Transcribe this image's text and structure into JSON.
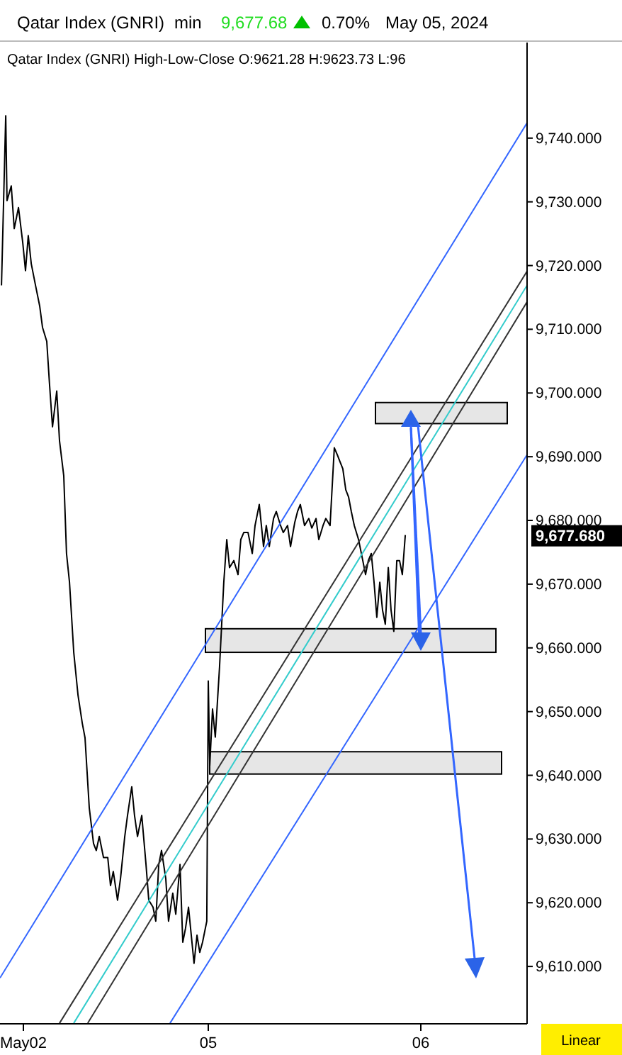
{
  "chart_data": {
    "type": "line",
    "title": "Qatar Index  (GNRI)",
    "subtitle": "Qatar Index (GNRI)  High-Low-Close    O:9621.28  H:9623.73  L:96",
    "annotations": [
      "min",
      "9,677.68",
      "0.70%",
      "May 05, 2024",
      "Linear",
      "9,677.680"
    ],
    "xlim": [
      4.02,
      6.5
    ],
    "xticks": [
      {
        "value": 4.13,
        "label": "May02"
      },
      {
        "value": 5,
        "label": "05"
      },
      {
        "value": 6,
        "label": "06"
      }
    ],
    "ylim": [
      9601,
      9755
    ],
    "yticks": [
      {
        "value": 9610,
        "label": "9,610.000"
      },
      {
        "value": 9620,
        "label": "9,620.000"
      },
      {
        "value": 9630,
        "label": "9,630.000"
      },
      {
        "value": 9640,
        "label": "9,640.000"
      },
      {
        "value": 9650,
        "label": "9,650.000"
      },
      {
        "value": 9660,
        "label": "9,660.000"
      },
      {
        "value": 9670,
        "label": "9,670.000"
      },
      {
        "value": 9680,
        "label": "9,680.000"
      },
      {
        "value": 9690,
        "label": "9,690.000"
      },
      {
        "value": 9700,
        "label": "9,700.000"
      },
      {
        "value": 9710,
        "label": "9,710.000"
      },
      {
        "value": 9720,
        "label": "9,720.000"
      },
      {
        "value": 9730,
        "label": "9,730.000"
      },
      {
        "value": 9740,
        "label": "9,740.000"
      }
    ],
    "grid": false,
    "bands": [
      {
        "axis": "y",
        "from": 9695.2,
        "to": 9698.5,
        "color": "#e6e6e6"
      },
      {
        "axis": "y",
        "from": 9659.3,
        "to": 9663.0,
        "color": "#e6e6e6"
      },
      {
        "axis": "y",
        "from": 9640.2,
        "to": 9643.7,
        "color": "#e6e6e6"
      }
    ],
    "series": [
      {
        "color": "#000000",
        "x": [
          4.027,
          4.047,
          4.053,
          4.073,
          4.087,
          4.107,
          4.127,
          4.14,
          4.153,
          4.167,
          4.187,
          4.207,
          4.22,
          4.24,
          4.253,
          4.267,
          4.287,
          4.3,
          4.32,
          4.333,
          4.347,
          4.367,
          4.387,
          4.407,
          4.42,
          4.44,
          4.46,
          4.473,
          4.487,
          4.507,
          4.527,
          4.54,
          4.553,
          4.573,
          4.587,
          4.607,
          4.62,
          4.64,
          4.653,
          4.667,
          4.687,
          4.707,
          4.72,
          4.74,
          4.753,
          4.767,
          4.78,
          4.8,
          4.813,
          4.833,
          4.847,
          4.867,
          4.88,
          4.893,
          4.907,
          4.92,
          4.933,
          4.947,
          4.96,
          4.973,
          4.993,
          5.0,
          5.007,
          5.02,
          5.033,
          5.053,
          5.073,
          5.087,
          5.1,
          5.12,
          5.14,
          5.153,
          5.167,
          5.187,
          5.207,
          5.22,
          5.24,
          5.26,
          5.273,
          5.287,
          5.307,
          5.32,
          5.34,
          5.353,
          5.373,
          5.387,
          5.407,
          5.42,
          5.433,
          5.453,
          5.473,
          5.487,
          5.507,
          5.52,
          5.54,
          5.553,
          5.573,
          5.593,
          5.607,
          5.62,
          5.633,
          5.647,
          5.66,
          5.673,
          5.687,
          5.707,
          5.727,
          5.74,
          5.753,
          5.767,
          5.78,
          5.793,
          5.807,
          5.82,
          5.833,
          5.847,
          5.86,
          5.873,
          5.887,
          5.9,
          5.913,
          5.927
        ],
        "values": [
          9716.9,
          9743.5,
          9730.2,
          9732.5,
          9725.8,
          9729.1,
          9723.6,
          9719.2,
          9724.7,
          9720.3,
          9716.9,
          9713.6,
          9710.3,
          9708.1,
          9701.4,
          9694.7,
          9700.3,
          9692.5,
          9687.0,
          9674.8,
          9670.3,
          9659.3,
          9652.6,
          9648.2,
          9645.9,
          9634.9,
          9629.3,
          9628.2,
          9630.4,
          9627.1,
          9627.1,
          9622.7,
          9624.9,
          9620.4,
          9623.8,
          9630.4,
          9633.7,
          9638.2,
          9633.7,
          9630.4,
          9633.7,
          9626.0,
          9620.4,
          9619.3,
          9617.1,
          9626.0,
          9628.2,
          9623.8,
          9617.1,
          9621.5,
          9618.2,
          9626.0,
          9613.8,
          9616.0,
          9619.3,
          9614.9,
          9610.5,
          9614.9,
          9612.2,
          9613.8,
          9617.1,
          9654.8,
          9641.5,
          9650.4,
          9646.0,
          9657.0,
          9670.3,
          9677.0,
          9672.6,
          9673.7,
          9671.5,
          9677.0,
          9678.1,
          9678.1,
          9674.8,
          9679.2,
          9682.5,
          9675.9,
          9679.2,
          9675.9,
          9680.3,
          9681.4,
          9679.2,
          9678.1,
          9679.2,
          9675.9,
          9679.7,
          9681.4,
          9682.5,
          9679.2,
          9680.3,
          9678.8,
          9680.3,
          9677.0,
          9679.2,
          9680.3,
          9679.2,
          9691.4,
          9690.3,
          9689.2,
          9688.1,
          9684.8,
          9683.7,
          9681.4,
          9679.2,
          9677.0,
          9673.7,
          9671.5,
          9673.7,
          9674.8,
          9670.3,
          9664.8,
          9670.3,
          9665.9,
          9663.7,
          9672.6,
          9665.9,
          9662.6,
          9673.7,
          9673.7,
          9671.5,
          9677.7
        ]
      },
      {
        "type": "line",
        "color": "#3366ff",
        "x": [
          4.02,
          6.5
        ],
        "values": [
          9608.2,
          9742.4
        ]
      },
      {
        "type": "line",
        "color": "#3366ff",
        "x": [
          4.82,
          6.5
        ],
        "values": [
          9601.1,
          9690.3
        ]
      },
      {
        "type": "line",
        "color": "#333333",
        "x": [
          4.3,
          6.5
        ],
        "values": [
          9601.1,
          9719.1
        ]
      },
      {
        "type": "line",
        "color": "#33cccc",
        "x": [
          4.367,
          6.5
        ],
        "values": [
          9601.1,
          9716.9
        ]
      },
      {
        "type": "line",
        "color": "#333333",
        "x": [
          4.433,
          6.5
        ],
        "values": [
          9601.1,
          9714.3
        ]
      }
    ]
  }
}
